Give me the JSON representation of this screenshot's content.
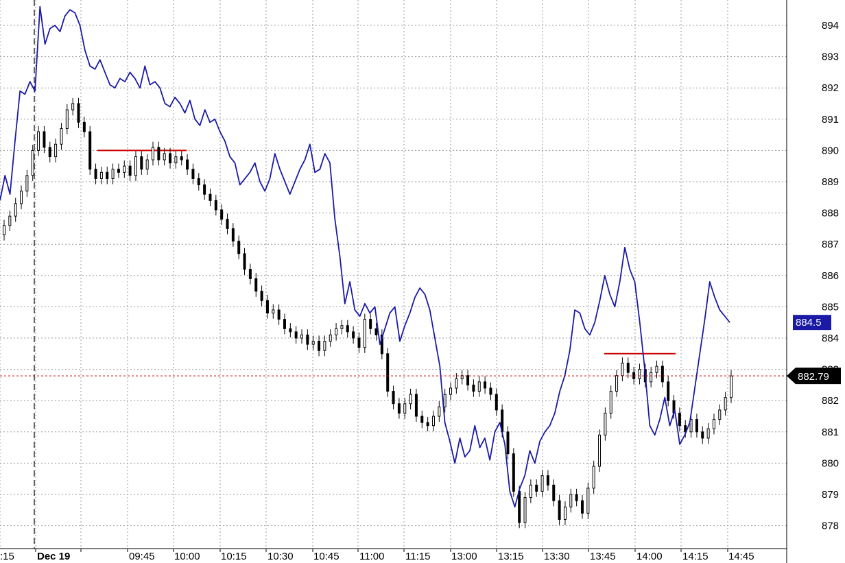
{
  "chart_data": {
    "type": "line",
    "subtype": "candlestick + line overlay",
    "title": "",
    "xlabel": "",
    "ylabel": "",
    "ylim": [
      877.5,
      894.7
    ],
    "y_ticks": [
      878,
      879,
      880,
      881,
      882,
      883,
      884,
      885,
      886,
      887,
      888,
      889,
      890,
      891,
      892,
      893,
      894
    ],
    "x_ticks": [
      ":15",
      "Dec 19",
      "09:45",
      "10:00",
      "10:15",
      "10:30",
      "10:45",
      "11:00",
      "11:15",
      "13:00",
      "13:15",
      "13:30",
      "13:45",
      "14:00",
      "14:15",
      "14:45"
    ],
    "grid": true,
    "session_divider_at": "Dec 19",
    "series": [
      {
        "kind": "line",
        "color": "#1a1aa6",
        "last_value_label": "884.5",
        "values": [
          888.4,
          889.2,
          888.6,
          890.3,
          891.9,
          891.8,
          892.2,
          891.9,
          894.6,
          893.4,
          893.9,
          894.0,
          893.8,
          894.3,
          894.5,
          894.4,
          894.0,
          893.2,
          892.7,
          892.6,
          892.9,
          892.5,
          892.1,
          892.0,
          892.3,
          892.2,
          892.5,
          892.3,
          892.0,
          892.7,
          892.1,
          892.2,
          892.0,
          891.5,
          891.4,
          891.7,
          891.5,
          891.2,
          891.6,
          891.0,
          890.8,
          891.3,
          890.9,
          891.0,
          890.6,
          890.3,
          889.8,
          889.6,
          888.9,
          889.1,
          889.3,
          889.6,
          889.0,
          888.7,
          889.1,
          889.9,
          889.4,
          889.0,
          888.6,
          889.0,
          889.4,
          889.7,
          890.2,
          889.3,
          889.4,
          889.9,
          889.6,
          887.8,
          886.6,
          885.1,
          885.8,
          884.9,
          884.7,
          885.1,
          884.8,
          885.0,
          883.8,
          884.3,
          884.8,
          885.0,
          883.9,
          884.4,
          884.8,
          885.3,
          885.6,
          885.4,
          884.9,
          884.0,
          883.1,
          881.3,
          880.7,
          880.0,
          880.8,
          880.2,
          880.4,
          881.2,
          880.5,
          880.8,
          880.1,
          881.0,
          881.3,
          880.6,
          879.1,
          878.6,
          879.2,
          879.6,
          880.4,
          880.0,
          880.7,
          881.0,
          881.2,
          881.6,
          882.3,
          882.8,
          883.6,
          884.9,
          884.8,
          884.3,
          884.1,
          884.5,
          885.2,
          886.0,
          885.4,
          885.0,
          885.8,
          886.9,
          886.2,
          885.8,
          884.5,
          883.0,
          881.2,
          880.9,
          881.4,
          882.1,
          881.2,
          881.7,
          880.6,
          880.9,
          881.3,
          882.4,
          883.5,
          884.6,
          885.8,
          885.3,
          884.9,
          884.7,
          884.5
        ],
        "volume_not_shown": true
      },
      {
        "kind": "candles",
        "up_color": "#ffffff",
        "down_color": "#000000",
        "last_price_label": "882.79",
        "values": [
          887.6,
          887.9,
          888.3,
          888.7,
          889.2,
          890.0,
          890.6,
          890.1,
          889.8,
          890.2,
          890.7,
          891.3,
          891.5,
          890.9,
          890.6,
          889.4,
          889.1,
          889.3,
          889.1,
          889.4,
          889.3,
          889.5,
          889.2,
          889.8,
          889.4,
          889.7,
          890.1,
          889.7,
          889.9,
          889.6,
          889.8,
          889.7,
          889.4,
          889.1,
          888.9,
          888.6,
          888.4,
          888.1,
          887.8,
          887.5,
          887.1,
          886.7,
          886.2,
          885.9,
          885.5,
          885.2,
          884.8,
          884.9,
          884.6,
          884.3,
          884.2,
          884.0,
          884.1,
          883.8,
          883.9,
          883.6,
          883.9,
          884.1,
          884.3,
          884.4,
          884.2,
          884.0,
          883.7,
          884.6,
          884.3,
          884.1,
          883.5,
          882.3,
          881.9,
          881.6,
          881.9,
          882.2,
          881.5,
          881.3,
          881.2,
          881.5,
          881.8,
          882.2,
          882.4,
          882.7,
          882.8,
          882.5,
          882.3,
          882.6,
          882.4,
          882.2,
          881.7,
          881.0,
          880.3,
          879.1,
          878.1,
          878.9,
          879.3,
          879.1,
          879.6,
          879.3,
          878.8,
          878.2,
          878.6,
          879.0,
          878.8,
          878.4,
          879.2,
          879.9,
          880.9,
          881.6,
          882.3,
          882.8,
          883.2,
          882.9,
          882.7,
          883.0,
          882.6,
          882.9,
          883.1,
          882.6,
          882.0,
          881.6,
          881.2,
          881.0,
          881.4,
          881.0,
          880.8,
          881.1,
          881.4,
          881.7,
          882.1,
          882.79
        ]
      }
    ],
    "reference_lines": [
      {
        "value": 890.0,
        "color": "#cc0000",
        "from": "09:30",
        "to": "10:00"
      },
      {
        "value": 883.5,
        "color": "#cc0000",
        "from": "13:45",
        "to": "14:15"
      }
    ],
    "last_price_line": {
      "value": 882.79,
      "color": "#cc0000",
      "style": "dotted"
    }
  }
}
